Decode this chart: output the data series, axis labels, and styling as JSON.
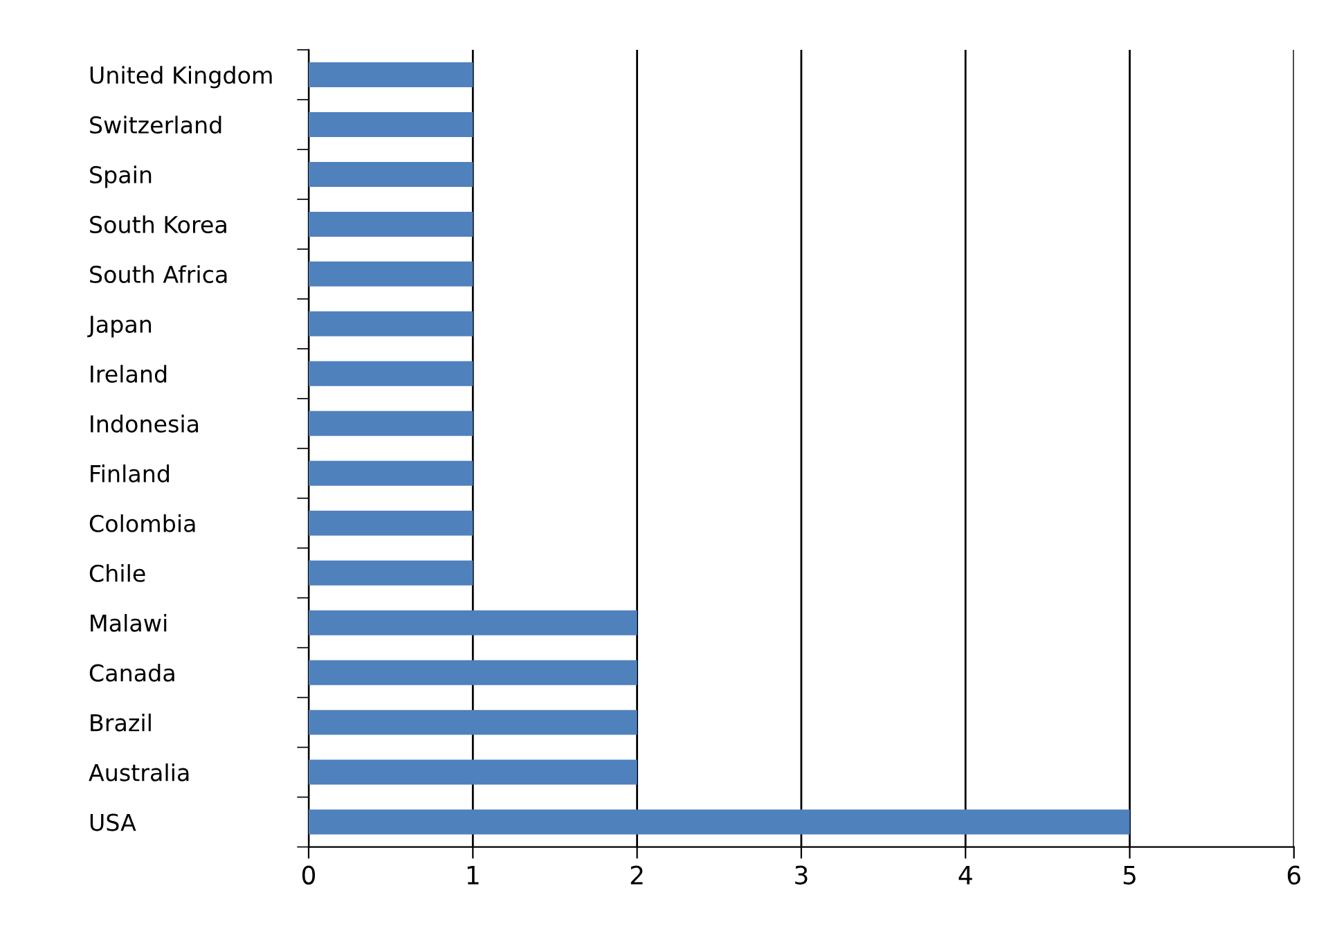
{
  "chart_data": {
    "type": "bar",
    "orientation": "horizontal",
    "categories": [
      "United Kingdom",
      "Switzerland",
      "Spain",
      "South Korea",
      "South Africa",
      "Japan",
      "Ireland",
      "Indonesia",
      "Finland",
      "Colombia",
      "Chile",
      "Malawi",
      "Canada",
      "Brazil",
      "Australia",
      "USA"
    ],
    "values": [
      1,
      1,
      1,
      1,
      1,
      1,
      1,
      1,
      1,
      1,
      1,
      2,
      2,
      2,
      2,
      5
    ],
    "color": "#4f81bd",
    "xlim": [
      0,
      6
    ],
    "xticks": [
      0,
      1,
      2,
      3,
      4,
      5,
      6
    ],
    "grid": "x",
    "legend": false
  }
}
